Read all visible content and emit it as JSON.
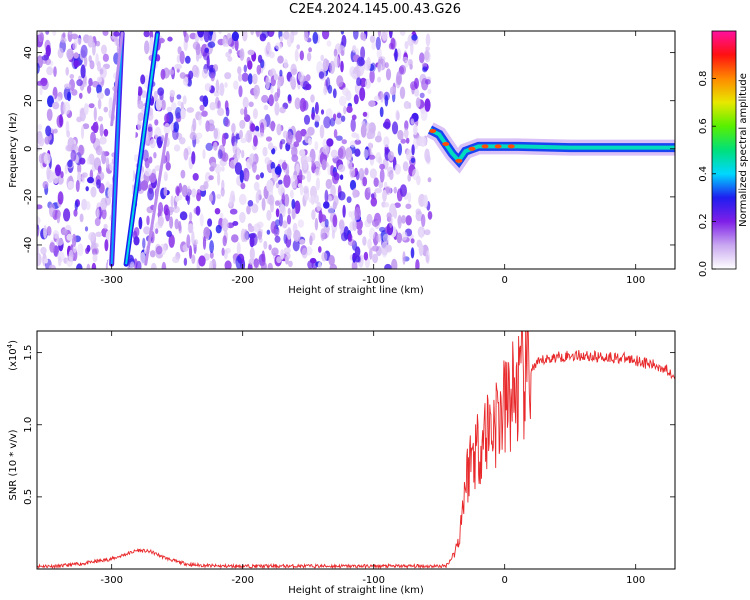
{
  "figure": {
    "title": "C2E4.2024.145.00.43.G26"
  },
  "chart_data": [
    {
      "type": "heatmap",
      "title": "C2E4.2024.145.00.43.G26",
      "xlabel": "Height of straight line (km)",
      "ylabel": "Frequency (Hz)",
      "xlim": [
        -357,
        130
      ],
      "ylim": [
        -50,
        49
      ],
      "x_ticks": [
        -300,
        -200,
        -100,
        0,
        100
      ],
      "y_ticks": [
        -40,
        -20,
        0,
        20,
        40
      ],
      "colorbar": {
        "label": "Normalized spectral amplitude",
        "range": [
          0,
          1
        ],
        "ticks": [
          0.0,
          0.2,
          0.4,
          0.6,
          0.8
        ],
        "colors": [
          "#ffffff",
          "#c9a8f0",
          "#7f1fe8",
          "#1e1ef0",
          "#00d8ff",
          "#00e07a",
          "#58f000",
          "#e8e800",
          "#ff8a00",
          "#ff1010",
          "#ff10a0"
        ]
      },
      "features": {
        "noise_region_x": [
          -357,
          -57
        ],
        "tracks": [
          {
            "name": "",
            "x": [
              -300,
              -292
            ],
            "y": [
              -48,
              48
            ],
            "amplitude": 0.25
          },
          {
            "name": "",
            "x": [
              -289,
              -265
            ],
            "y": [
              -48,
              48
            ],
            "amplitude": 0.3
          },
          {
            "name": "",
            "x": [
              -300,
              -292
            ],
            "y": [
              10,
              48
            ],
            "amplitude": 0.12
          },
          {
            "name": "",
            "x": [
              -274,
              -258
            ],
            "y": [
              -48,
              6
            ],
            "amplitude": 0.12
          }
        ],
        "signal_line": {
          "x_start": -57,
          "x_end": 130,
          "y": [
            8,
            6,
            2,
            -2,
            -5,
            -1,
            1,
            1,
            1,
            1,
            0.5,
            0.5,
            0.5
          ],
          "x": [
            -57,
            -50,
            -45,
            -40,
            -35,
            -30,
            -20,
            -10,
            0,
            10,
            50,
            100,
            130
          ],
          "amplitude": 0.45
        }
      },
      "grid": false
    },
    {
      "type": "line",
      "xlabel": "Height of straight line (km)",
      "ylabel": "SNR (10 * v/v)",
      "y_scale_note": "(x10",
      "y_scale_exp": "4",
      "y_scale_close": ")",
      "xlim": [
        -357,
        130
      ],
      "ylim": [
        0,
        1.65
      ],
      "x_ticks": [
        -300,
        -200,
        -100,
        0,
        100
      ],
      "y_ticks": [
        0.5,
        1.0,
        1.5
      ],
      "y_tick_labels": [
        "0.5",
        "1.0",
        "1.5"
      ],
      "series": [
        {
          "color": "#e8282a",
          "x": [
            -357,
            -340,
            -320,
            -300,
            -290,
            -280,
            -270,
            -260,
            -250,
            -240,
            -220,
            -200,
            -150,
            -100,
            -60,
            -45,
            -40,
            -35,
            -30,
            -25,
            -20,
            -15,
            -10,
            -5,
            0,
            5,
            10,
            15,
            20,
            25,
            30,
            40,
            50,
            60,
            70,
            80,
            90,
            100,
            110,
            120,
            130
          ],
          "values": [
            0.02,
            0.02,
            0.04,
            0.07,
            0.1,
            0.13,
            0.12,
            0.08,
            0.05,
            0.03,
            0.02,
            0.02,
            0.02,
            0.02,
            0.02,
            0.02,
            0.08,
            0.2,
            0.6,
            0.8,
            0.85,
            0.95,
            1.0,
            1.05,
            1.1,
            1.2,
            1.25,
            1.3,
            1.38,
            1.42,
            1.45,
            1.47,
            1.48,
            1.48,
            1.47,
            1.47,
            1.46,
            1.45,
            1.42,
            1.4,
            1.35
          ]
        }
      ],
      "grid": false
    }
  ]
}
